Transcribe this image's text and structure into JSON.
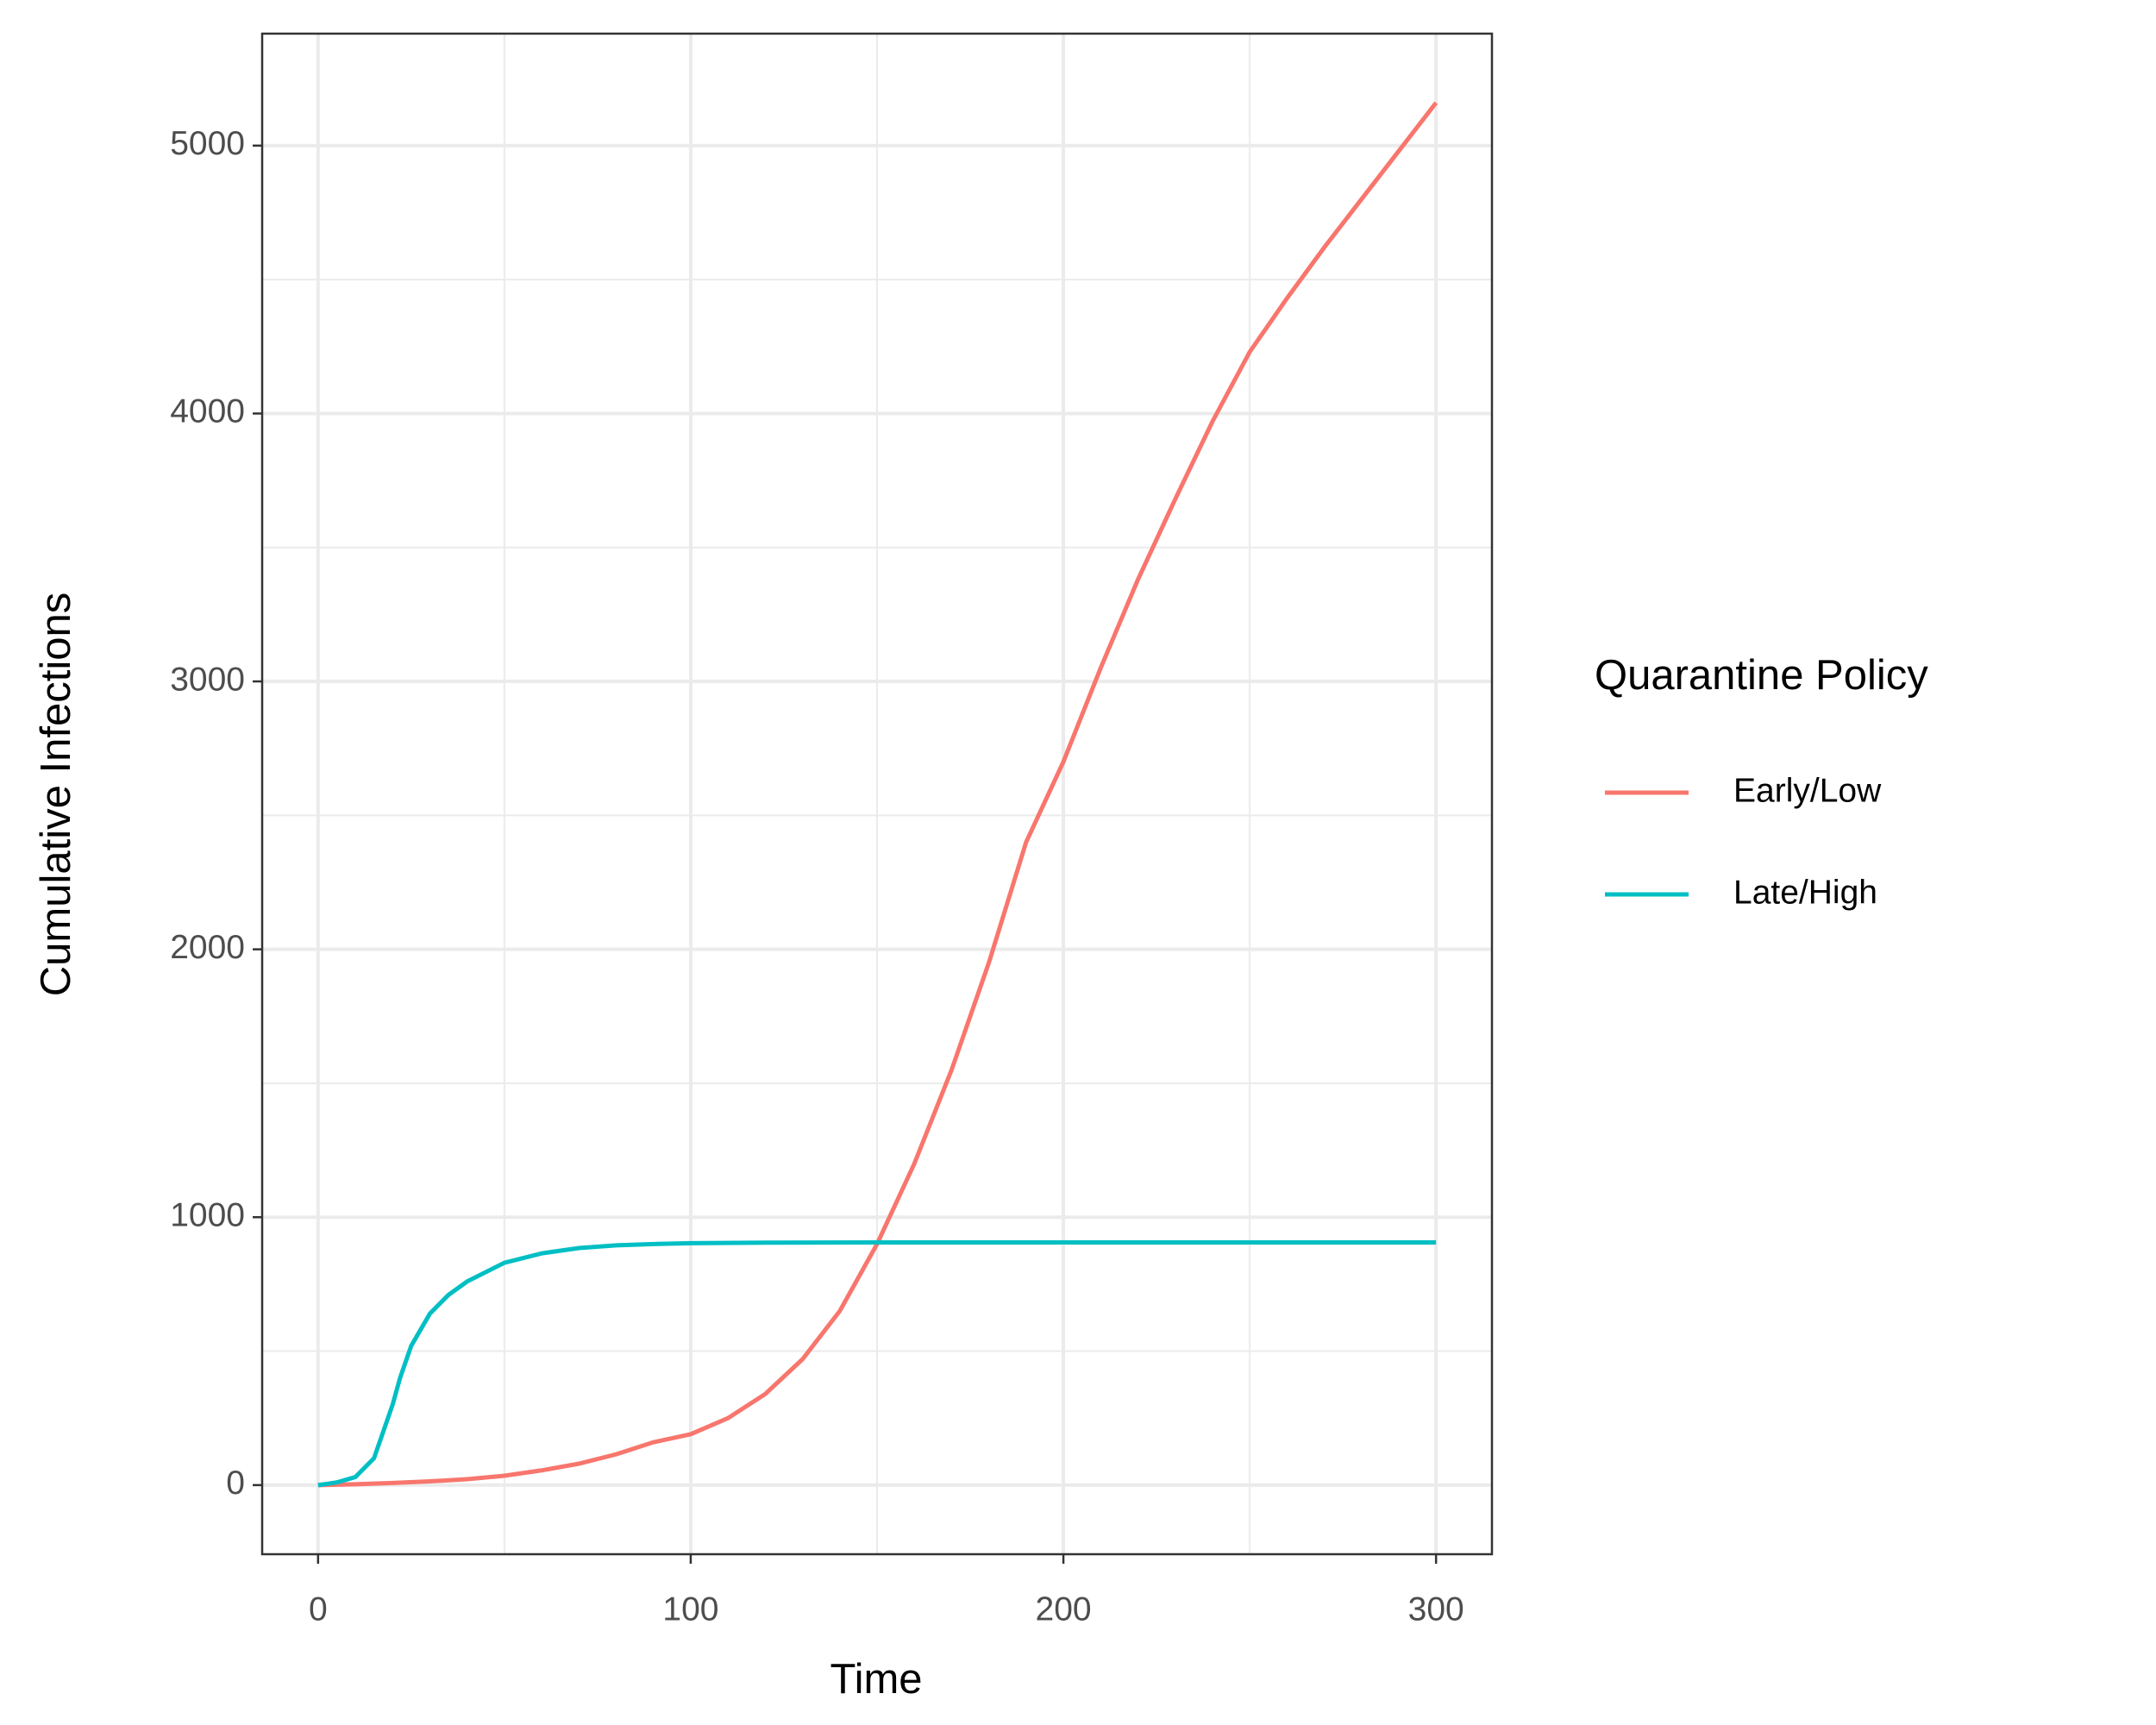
{
  "chart_data": {
    "type": "line",
    "x_label": "Time",
    "y_label": "Cumulative Infections",
    "legend_title": "Quarantine Policy",
    "legend_position": "right",
    "grid": true,
    "xlim": [
      -15,
      315
    ],
    "ylim": [
      -258,
      5418
    ],
    "xticks": [
      0,
      100,
      200,
      300
    ],
    "yticks": [
      0,
      1000,
      2000,
      3000,
      4000,
      5000
    ],
    "x_minor_grid": [
      50,
      150,
      250
    ],
    "y_minor_grid": [
      500,
      1500,
      2500,
      3500,
      4500
    ],
    "series": [
      {
        "name": "Early/Low",
        "color": "#f8766d",
        "x": [
          0,
          10,
          20,
          30,
          40,
          50,
          60,
          70,
          80,
          90,
          100,
          110,
          120,
          130,
          140,
          150,
          160,
          170,
          180,
          190,
          200,
          210,
          220,
          230,
          240,
          250,
          260,
          270,
          280,
          290,
          300
        ],
        "values": [
          0,
          3,
          8,
          14,
          22,
          35,
          55,
          80,
          115,
          160,
          190,
          250,
          340,
          470,
          650,
          900,
          1200,
          1550,
          1950,
          2400,
          2700,
          3050,
          3380,
          3680,
          3970,
          4230,
          4430,
          4620,
          4800,
          4980,
          5160
        ]
      },
      {
        "name": "Late/High",
        "color": "#00bfc4",
        "x": [
          0,
          5,
          10,
          15,
          20,
          22,
          25,
          30,
          35,
          40,
          50,
          60,
          70,
          80,
          90,
          100,
          120,
          150,
          200,
          250,
          300
        ],
        "values": [
          0,
          10,
          30,
          100,
          300,
          400,
          520,
          640,
          710,
          760,
          830,
          865,
          885,
          895,
          900,
          903,
          905,
          906,
          906,
          906,
          906
        ]
      }
    ]
  }
}
